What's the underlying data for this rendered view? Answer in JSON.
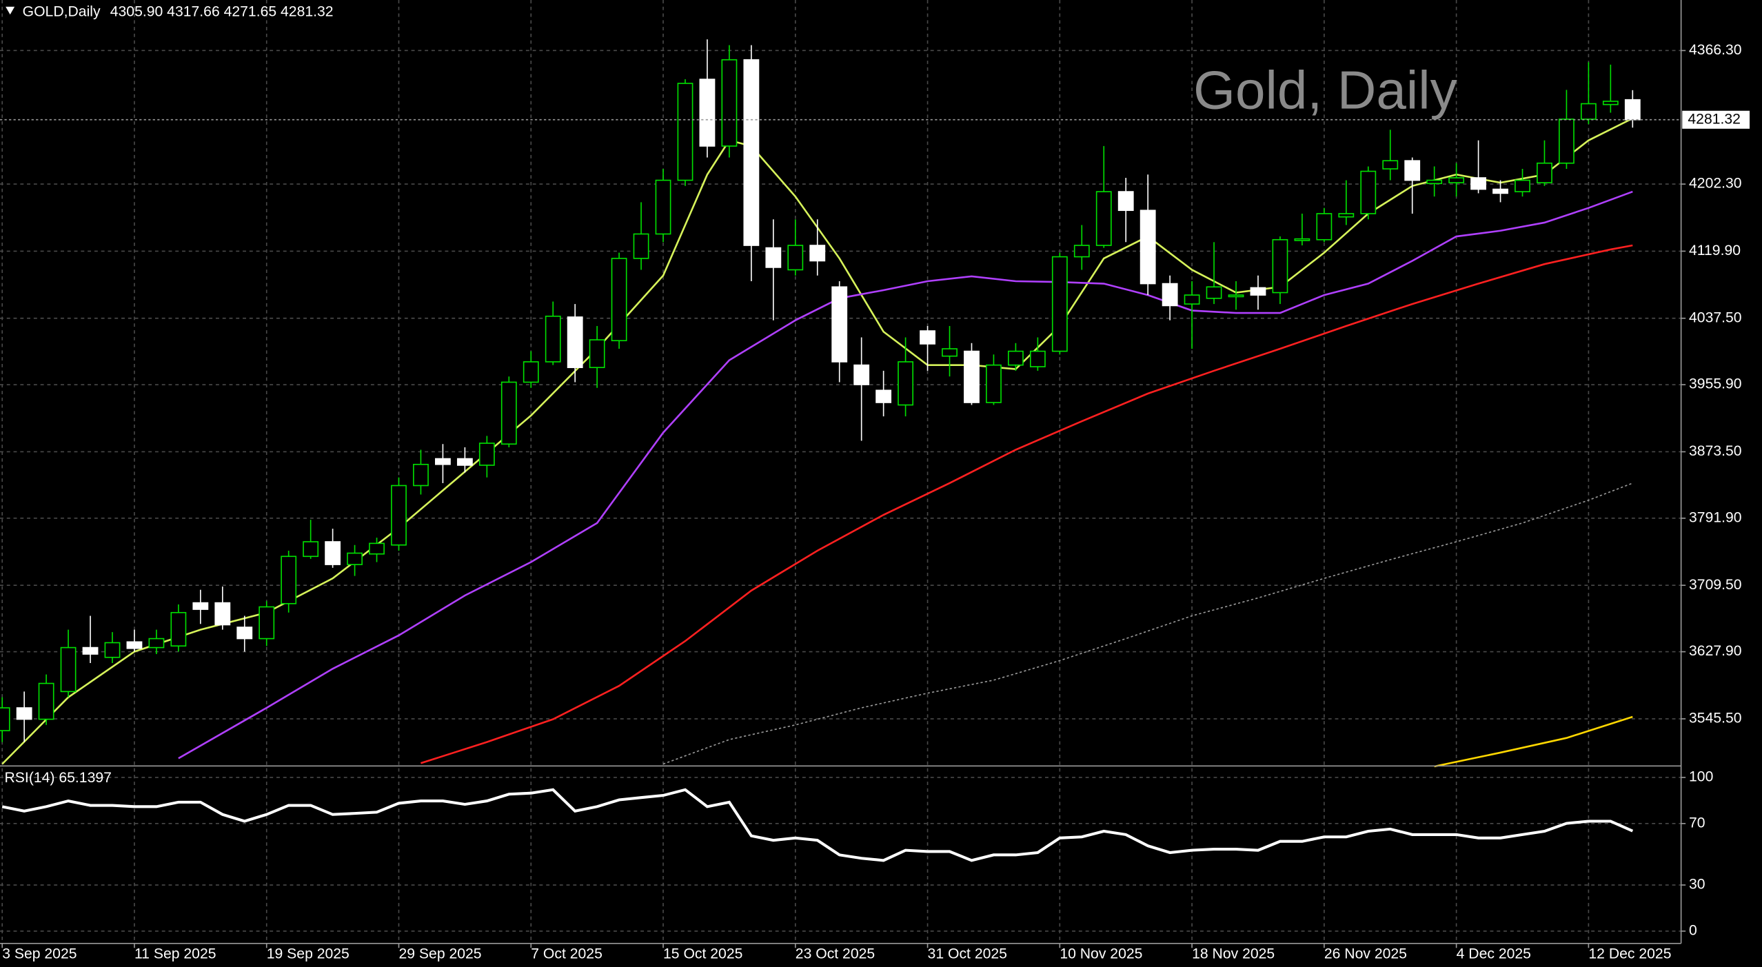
{
  "chart_data": [
    {
      "type": "candlestick",
      "title": "GOLD,Daily",
      "ohlc_label": "4305.90 4317.66 4271.65 4281.32",
      "watermark": "Gold, Daily",
      "price_label": "4281.32",
      "up_color": "#00e000",
      "down_color": "#ffffff",
      "open": [
        3531,
        3559,
        3545,
        3579,
        3633,
        3621,
        3640,
        3633,
        3635,
        3688,
        3688,
        3658,
        3644,
        3687,
        3745,
        3763,
        3735,
        3748,
        3759,
        3832,
        3865,
        3865,
        3857,
        3883,
        3959,
        3984,
        4039,
        3977,
        4010,
        4111,
        4141,
        4207,
        4331,
        4249,
        4355,
        4124,
        4097,
        4127,
        4076,
        3980,
        3949,
        3931,
        4022,
        3991,
        3997,
        3934,
        3980,
        3978,
        3997,
        4113,
        4127,
        4193,
        4170,
        4080,
        4055,
        4062,
        4064,
        4075,
        4069,
        4133,
        4134,
        4162,
        4166,
        4221,
        4231,
        4203,
        4204,
        4210,
        4196,
        4193,
        4204,
        4228,
        4282,
        4300,
        4305.9
      ],
      "high": [
        3572,
        3579,
        3600,
        3655,
        3672,
        3652,
        3655,
        3655,
        3686,
        3704,
        3708,
        3672,
        3690,
        3752,
        3790,
        3779,
        3759,
        3768,
        3842,
        3876,
        3883,
        3879,
        3893,
        3966,
        3997,
        4058,
        4055,
        4028,
        4118,
        4180,
        4221,
        4331,
        4380,
        4373,
        4373,
        4159,
        4159,
        4159,
        4083,
        4014,
        3973,
        4014,
        4028,
        4028,
        4007,
        3993,
        4007,
        4014,
        4118,
        4152,
        4249,
        4210,
        4214,
        4090,
        4083,
        4131,
        4083,
        4090,
        4138,
        4166,
        4173,
        4207,
        4224,
        4269,
        4235,
        4224,
        4228,
        4256,
        4207,
        4221,
        4256,
        4318,
        4352,
        4349,
        4317.66
      ],
      "low": [
        3517,
        3517,
        3538,
        3572,
        3614,
        3614,
        3628,
        3625,
        3628,
        3662,
        3655,
        3628,
        3635,
        3676,
        3742,
        3731,
        3721,
        3738,
        3752,
        3821,
        3835,
        3848,
        3842,
        3879,
        3952,
        3980,
        3959,
        3952,
        4000,
        4097,
        4131,
        4200,
        4235,
        4235,
        4083,
        4035,
        4090,
        4090,
        3959,
        3887,
        3917,
        3917,
        3973,
        3966,
        3931,
        3931,
        3973,
        3973,
        3993,
        4097,
        4124,
        4131,
        4066,
        4035,
        4000,
        4055,
        4048,
        4048,
        4055,
        4127,
        4131,
        4152,
        4159,
        4207,
        4166,
        4187,
        4187,
        4191,
        4180,
        4187,
        4200,
        4221,
        4276,
        4290,
        4271.65
      ],
      "close": [
        3559,
        3545,
        3589,
        3633,
        3625,
        3639,
        3632,
        3644,
        3676,
        3680,
        3661,
        3644,
        3683,
        3745,
        3763,
        3735,
        3749,
        3761,
        3832,
        3858,
        3858,
        3857,
        3884,
        3959,
        3984,
        4040,
        3977,
        4011,
        4111,
        4141,
        4207,
        4326,
        4249,
        4355,
        4127,
        4100,
        4127,
        4108,
        3984,
        3956,
        3934,
        3984,
        4006,
        4000,
        3934,
        3980,
        3997,
        3997,
        4113,
        4127,
        4193,
        4170,
        4080,
        4053,
        4066,
        4076,
        4066,
        4066,
        4134,
        4135,
        4166,
        4166,
        4218,
        4231,
        4207,
        4207,
        4210,
        4196,
        4191,
        4207,
        4228,
        4282,
        4301,
        4304,
        4281.32
      ],
      "series": [
        {
          "color": "#d6f25a",
          "x": [
            0,
            3,
            6,
            9,
            12,
            15,
            18,
            21,
            24,
            27,
            30,
            32,
            33,
            34,
            36,
            38,
            40,
            42,
            44,
            46,
            48,
            50,
            52,
            54,
            56,
            58,
            60,
            62,
            64,
            66,
            68,
            70,
            72,
            74
          ],
          "values": [
            3490,
            3572,
            3628,
            3655,
            3676,
            3718,
            3780,
            3849,
            3918,
            4000,
            4090,
            4214,
            4256,
            4249,
            4187,
            4111,
            4021,
            3980,
            3980,
            3975,
            4028,
            4111,
            4138,
            4097,
            4069,
            4076,
            4118,
            4166,
            4200,
            4214,
            4204,
            4214,
            4256,
            4283
          ]
        },
        {
          "color": "#b040ff",
          "x": [
            8,
            12,
            15,
            18,
            21,
            24,
            27,
            30,
            33,
            36,
            38,
            40,
            42,
            44,
            46,
            48,
            50,
            52,
            54,
            56,
            58,
            60,
            62,
            64,
            66,
            68,
            70,
            72,
            74
          ],
          "values": [
            3497,
            3559,
            3607,
            3648,
            3697,
            3738,
            3786,
            3897,
            3986,
            4035,
            4062,
            4072,
            4083,
            4089,
            4083,
            4082,
            4080,
            4066,
            4047,
            4044,
            4044,
            4066,
            4080,
            4108,
            4138,
            4145,
            4155,
            4173,
            4193
          ]
        },
        {
          "color": "#ff2020",
          "x": [
            19,
            22,
            25,
            28,
            31,
            34,
            37,
            40,
            43,
            46,
            49,
            52,
            55,
            58,
            61,
            64,
            67,
            70,
            73,
            74
          ],
          "values": [
            3491,
            3517,
            3545,
            3586,
            3641,
            3703,
            3752,
            3796,
            3835,
            3876,
            3911,
            3945,
            3973,
            4000,
            4028,
            4055,
            4080,
            4104,
            4122,
            4127
          ]
        },
        {
          "color": "#9a9a9a",
          "dashed": true,
          "x": [
            30,
            33,
            36,
            39,
            42,
            45,
            48,
            51,
            54,
            57,
            60,
            63,
            66,
            69,
            72,
            74
          ],
          "values": [
            3490,
            3520,
            3538,
            3559,
            3577,
            3593,
            3617,
            3644,
            3672,
            3694,
            3718,
            3741,
            3763,
            3786,
            3814,
            3835
          ]
        },
        {
          "color": "#ffd700",
          "x": [
            65,
            68,
            71,
            74
          ],
          "values": [
            3487,
            3504,
            3522,
            3548
          ]
        }
      ],
      "xlim": [
        -0.1,
        76.2
      ],
      "xticks": [
        {
          "value": 0,
          "label": "3 Sep 2025"
        },
        {
          "value": 6,
          "label": "11 Sep 2025"
        },
        {
          "value": 12,
          "label": "19 Sep 2025"
        },
        {
          "value": 18,
          "label": "29 Sep 2025"
        },
        {
          "value": 24,
          "label": "7 Oct 2025"
        },
        {
          "value": 30,
          "label": "15 Oct 2025"
        },
        {
          "value": 36,
          "label": "23 Oct 2025"
        },
        {
          "value": 42,
          "label": "31 Oct 2025"
        },
        {
          "value": 48,
          "label": "10 Nov 2025"
        },
        {
          "value": 54,
          "label": "18 Nov 2025"
        },
        {
          "value": 60,
          "label": "26 Nov 2025"
        },
        {
          "value": 66,
          "label": "4 Dec 2025"
        },
        {
          "value": 72,
          "label": "12 Dec 2025"
        }
      ],
      "ylim": [
        3487.6,
        4428.4
      ],
      "yticks": [
        {
          "value": 4366.3,
          "label": "4366.30"
        },
        {
          "value": 4202.3,
          "label": "4202.30"
        },
        {
          "value": 4119.9,
          "label": "4119.90"
        },
        {
          "value": 4037.5,
          "label": "4037.50"
        },
        {
          "value": 3955.9,
          "label": "3955.90"
        },
        {
          "value": 3873.5,
          "label": "3873.50"
        },
        {
          "value": 3791.9,
          "label": "3791.90"
        },
        {
          "value": 3709.5,
          "label": "3709.50"
        },
        {
          "value": 3627.9,
          "label": "3627.90"
        },
        {
          "value": 3545.5,
          "label": "3545.50"
        }
      ],
      "grid": true
    },
    {
      "type": "line",
      "title": "RSI(14) 65.1397",
      "color": "#ffffff",
      "values": [
        81.0,
        78.1,
        81.0,
        84.7,
        81.8,
        81.8,
        81.0,
        81.0,
        83.9,
        83.9,
        75.9,
        71.5,
        75.9,
        81.8,
        81.8,
        75.9,
        76.6,
        77.4,
        83.2,
        84.7,
        84.7,
        82.5,
        84.7,
        89.1,
        89.8,
        92.0,
        78.1,
        81.0,
        85.4,
        86.9,
        88.3,
        92.0,
        81.0,
        83.9,
        62.0,
        59.1,
        60.6,
        59.1,
        49.6,
        47.4,
        46.0,
        52.6,
        51.8,
        51.8,
        46.0,
        49.6,
        49.6,
        51.1,
        60.6,
        61.3,
        65.0,
        62.8,
        55.5,
        51.1,
        52.6,
        53.3,
        53.3,
        52.6,
        58.4,
        58.4,
        61.3,
        61.3,
        65.0,
        66.4,
        62.8,
        62.8,
        62.8,
        60.6,
        60.6,
        62.8,
        65.0,
        70.1,
        71.5,
        71.5,
        65.1397
      ],
      "ylim": [
        -8,
        106
      ],
      "yticks": [
        100,
        70,
        30,
        0
      ],
      "grid": true
    }
  ]
}
